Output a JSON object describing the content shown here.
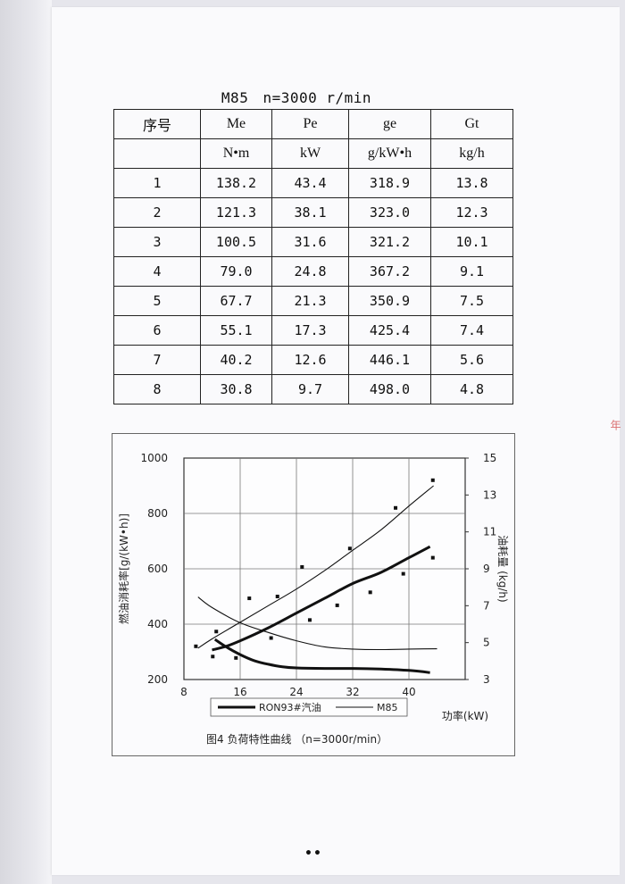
{
  "table_caption": {
    "engine": "M85",
    "speed": "n=3000 r/min"
  },
  "table": {
    "headers": [
      "序号",
      "Me",
      "Pe",
      "ge",
      "Gt"
    ],
    "units": [
      "",
      "N•m",
      "kW",
      "g/kW•h",
      "kg/h"
    ],
    "rows": [
      [
        "1",
        "138.2",
        "43.4",
        "318.9",
        "13.8"
      ],
      [
        "2",
        "121.3",
        "38.1",
        "323.0",
        "12.3"
      ],
      [
        "3",
        "100.5",
        "31.6",
        "321.2",
        "10.1"
      ],
      [
        "4",
        "79.0",
        "24.8",
        "367.2",
        "9.1"
      ],
      [
        "5",
        "67.7",
        "21.3",
        "350.9",
        "7.5"
      ],
      [
        "6",
        "55.1",
        "17.3",
        "425.4",
        "7.4"
      ],
      [
        "7",
        "40.2",
        "12.6",
        "446.1",
        "5.6"
      ],
      [
        "8",
        "30.8",
        "9.7",
        "498.0",
        "4.8"
      ]
    ]
  },
  "chart_data": {
    "type": "line",
    "title": "图4  负荷特性曲线  （n=3000r/min）",
    "xlabel": "功率(kW)",
    "ylabel_left": "燃油消耗率[g/(kW•h)]",
    "ylabel_right": "油耗量  (kg/h)",
    "x_ticks": [
      "8",
      "16",
      "24",
      "32",
      "40"
    ],
    "y_left_ticks": [
      "200",
      "400",
      "600",
      "800",
      "1000"
    ],
    "y_right_ticks": [
      "3",
      "5",
      "7",
      "9",
      "11",
      "13",
      "15"
    ],
    "xlim": [
      8,
      48
    ],
    "ylim_left": [
      200,
      1000
    ],
    "ylim_right": [
      3,
      15
    ],
    "legend": [
      "RON93#汽油",
      "M85"
    ],
    "legend_position": "bottom",
    "series": [
      {
        "name": "RON93#汽油",
        "axis": "left",
        "style": "thick",
        "x": [
          12.4,
          14,
          16,
          18,
          20,
          22,
          24,
          28,
          32,
          36,
          40,
          43
        ],
        "y": [
          345,
          318,
          290,
          268,
          255,
          246,
          242,
          240,
          240,
          238,
          233,
          225
        ]
      },
      {
        "name": "RON93#汽油",
        "axis": "right",
        "style": "thick",
        "x": [
          12,
          14,
          16,
          20,
          24,
          28,
          32,
          36,
          40,
          43
        ],
        "y": [
          4.6,
          4.8,
          5.1,
          5.8,
          6.6,
          7.4,
          8.2,
          8.8,
          9.6,
          10.2
        ]
      },
      {
        "name": "M85",
        "axis": "left",
        "style": "thin",
        "x": [
          10,
          12,
          16,
          20,
          24,
          28,
          32,
          36,
          40,
          44
        ],
        "y": [
          498,
          460,
          405,
          370,
          340,
          318,
          310,
          308,
          310,
          311
        ]
      },
      {
        "name": "M85",
        "axis": "right",
        "style": "thin",
        "x": [
          10,
          12,
          16,
          20,
          24,
          28,
          32,
          36,
          40,
          43.5
        ],
        "y": [
          4.7,
          5.2,
          6.1,
          7.0,
          7.9,
          8.9,
          10.0,
          11.1,
          12.4,
          13.5
        ]
      }
    ],
    "markers": [
      {
        "axis": "right",
        "x": [
          9.7,
          12.6,
          17.3,
          21.3,
          24.8,
          31.6,
          38.1,
          43.4
        ],
        "y": [
          4.8,
          5.6,
          7.4,
          7.5,
          9.1,
          10.1,
          12.3,
          13.8
        ]
      },
      {
        "axis": "left",
        "x": [
          12.1,
          15.4,
          20.4,
          25.9,
          29.8,
          34.5,
          39.2,
          43.4
        ],
        "y": [
          283,
          278,
          350,
          415,
          468,
          515,
          582,
          640
        ]
      }
    ]
  },
  "footer_marks": "••",
  "margin_mark": "年"
}
